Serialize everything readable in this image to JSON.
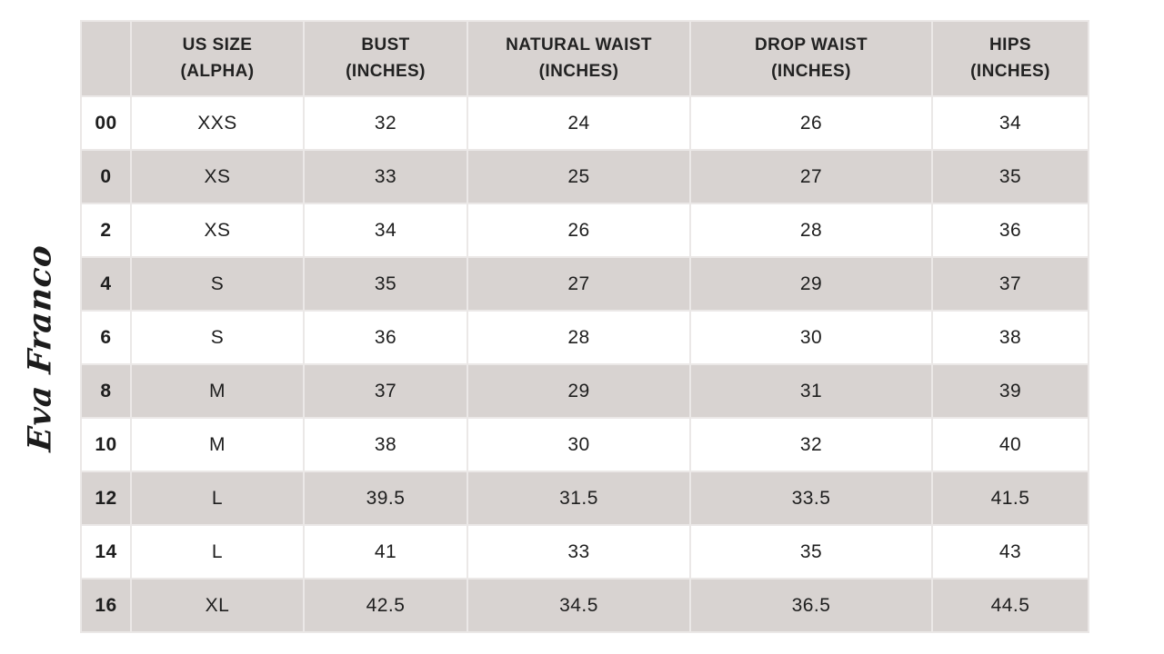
{
  "brand": {
    "logo_text": "Eva Franco"
  },
  "colors": {
    "page_bg": "#ffffff",
    "header_bg": "#d8d3d1",
    "alt_row_bg": "#d8d3d1",
    "row_bg": "#ffffff",
    "grid_line": "#ebe8e7",
    "text": "#1e1e1e"
  },
  "chart_data": {
    "type": "table",
    "legend_position": "none",
    "grid": true,
    "columns": [
      {
        "key": "us-size-numeric",
        "header_lines": []
      },
      {
        "key": "us-size-alpha",
        "header_lines": [
          "US SIZE",
          "(ALPHA)"
        ]
      },
      {
        "key": "bust",
        "header_lines": [
          "BUST",
          "(INCHES)"
        ]
      },
      {
        "key": "natural-waist",
        "header_lines": [
          "NATURAL WAIST",
          "(INCHES)"
        ]
      },
      {
        "key": "drop-waist",
        "header_lines": [
          "DROP WAIST",
          "(INCHES)"
        ]
      },
      {
        "key": "hips",
        "header_lines": [
          "HIPS",
          "(INCHES)"
        ]
      }
    ],
    "rows": [
      [
        "00",
        "XXS",
        "32",
        "24",
        "26",
        "34"
      ],
      [
        "0",
        "XS",
        "33",
        "25",
        "27",
        "35"
      ],
      [
        "2",
        "XS",
        "34",
        "26",
        "28",
        "36"
      ],
      [
        "4",
        "S",
        "35",
        "27",
        "29",
        "37"
      ],
      [
        "6",
        "S",
        "36",
        "28",
        "30",
        "38"
      ],
      [
        "8",
        "M",
        "37",
        "29",
        "31",
        "39"
      ],
      [
        "10",
        "M",
        "38",
        "30",
        "32",
        "40"
      ],
      [
        "12",
        "L",
        "39.5",
        "31.5",
        "33.5",
        "41.5"
      ],
      [
        "14",
        "L",
        "41",
        "33",
        "35",
        "43"
      ],
      [
        "16",
        "XL",
        "42.5",
        "34.5",
        "36.5",
        "44.5"
      ]
    ]
  }
}
